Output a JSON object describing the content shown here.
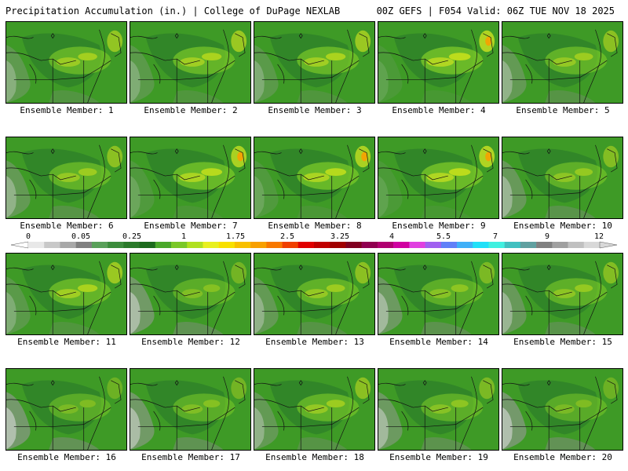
{
  "header": {
    "left": "Precipitation Accumulation (in.) | College of DuPage NEXLAB",
    "right": "00Z GEFS | F054 Valid: 06Z TUE NOV 18 2025"
  },
  "panels": [
    {
      "label": "Ensemble Member: 1",
      "intensity": 0.55
    },
    {
      "label": "Ensemble Member: 2",
      "intensity": 0.6
    },
    {
      "label": "Ensemble Member: 3",
      "intensity": 0.6
    },
    {
      "label": "Ensemble Member: 4",
      "intensity": 0.75
    },
    {
      "label": "Ensemble Member: 5",
      "intensity": 0.5
    },
    {
      "label": "Ensemble Member: 6",
      "intensity": 0.5
    },
    {
      "label": "Ensemble Member: 7",
      "intensity": 0.7
    },
    {
      "label": "Ensemble Member: 8",
      "intensity": 0.7
    },
    {
      "label": "Ensemble Member: 9",
      "intensity": 0.75
    },
    {
      "label": "Ensemble Member: 10",
      "intensity": 0.45
    },
    {
      "label": "Ensemble Member: 11",
      "intensity": 0.6
    },
    {
      "label": "Ensemble Member: 12",
      "intensity": 0.35
    },
    {
      "label": "Ensemble Member: 13",
      "intensity": 0.5
    },
    {
      "label": "Ensemble Member: 14",
      "intensity": 0.4
    },
    {
      "label": "Ensemble Member: 15",
      "intensity": 0.45
    },
    {
      "label": "Ensemble Member: 16",
      "intensity": 0.3
    },
    {
      "label": "Ensemble Member: 17",
      "intensity": 0.35
    },
    {
      "label": "Ensemble Member: 18",
      "intensity": 0.5
    },
    {
      "label": "Ensemble Member: 19",
      "intensity": 0.4
    },
    {
      "label": "Ensemble Member: 20",
      "intensity": 0.3
    }
  ],
  "colorbar": {
    "ticks": [
      "0",
      "0.05",
      "0.25",
      "1",
      "1.75",
      "2.5",
      "3.25",
      "4",
      "5.5",
      "7",
      "9",
      "12"
    ],
    "colors": [
      "#e8e8e8",
      "#c8c8c8",
      "#a8a8a8",
      "#808080",
      "#5aa05a",
      "#3c8c3c",
      "#2a7a2a",
      "#1c6a1c",
      "#4aa82a",
      "#7ac828",
      "#b0e020",
      "#e8f020",
      "#f8e000",
      "#f8c000",
      "#f8a000",
      "#f87800",
      "#f04000",
      "#e00000",
      "#c00000",
      "#a00000",
      "#800020",
      "#900050",
      "#b00070",
      "#d000a0",
      "#e040e0",
      "#a060f0",
      "#6080f8",
      "#40b0f8",
      "#20e0f8",
      "#40f0e0",
      "#40c0c0",
      "#60a0a0",
      "#808080",
      "#a0a0a0",
      "#c0c0c0",
      "#d8d8d8"
    ]
  }
}
